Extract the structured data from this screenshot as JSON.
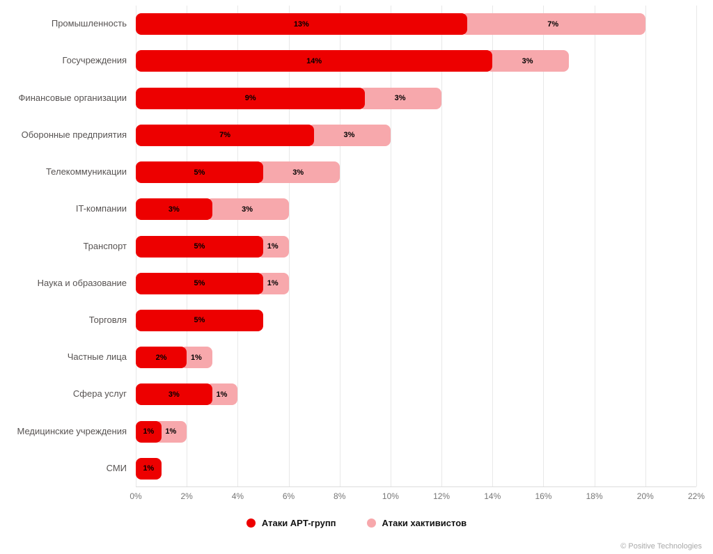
{
  "chart_data": {
    "type": "bar",
    "orientation": "horizontal",
    "stacked": true,
    "title": "",
    "xlabel": "",
    "ylabel": "",
    "xlim": [
      0,
      22
    ],
    "grid": true,
    "legend_position": "bottom",
    "value_suffix": "%",
    "categories": [
      "Промышленность",
      "Госучреждения",
      "Финансовые организации",
      "Оборонные предприятия",
      "Телекоммуникации",
      "IT-компании",
      "Транспорт",
      "Наука и образование",
      "Торговля",
      "Частные лица",
      "Сфера услуг",
      "Медицинские учреждения",
      "СМИ"
    ],
    "series": [
      {
        "name": "Атаки APT-групп",
        "color": "#ed0000",
        "values": [
          13,
          14,
          9,
          7,
          5,
          3,
          5,
          5,
          5,
          2,
          3,
          1,
          1
        ]
      },
      {
        "name": "Атаки хактивистов",
        "color": "#f7a8ac",
        "values": [
          7,
          3,
          3,
          3,
          3,
          3,
          1,
          1,
          0,
          1,
          1,
          1,
          0
        ]
      }
    ],
    "x_ticks": [
      "0%",
      "2%",
      "4%",
      "6%",
      "8%",
      "10%",
      "12%",
      "14%",
      "16%",
      "18%",
      "20%",
      "22%"
    ]
  },
  "legend": {
    "items": [
      {
        "label": "Атаки APT-групп",
        "color": "#ed0000"
      },
      {
        "label": "Атаки хактивистов",
        "color": "#f7a8ac"
      }
    ]
  },
  "copyright": "© Positive Technologies"
}
